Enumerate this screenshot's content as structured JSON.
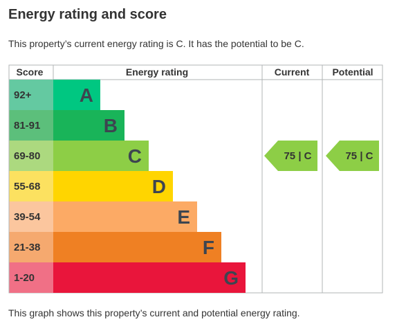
{
  "heading": "Energy rating and score",
  "intro_text": "This property’s current energy rating is C. It has the potential to be C.",
  "footer_text": "This graph shows this property’s current and potential energy rating.",
  "chart_data": {
    "type": "bar",
    "columns": {
      "score": "Score",
      "rating": "Energy rating",
      "current": "Current",
      "potential": "Potential"
    },
    "bands": [
      {
        "score": "92+",
        "letter": "A",
        "color": "#00c781",
        "score_color": "#64c9a1"
      },
      {
        "score": "81-91",
        "letter": "B",
        "color": "#19b459",
        "score_color": "#5cbf7b"
      },
      {
        "score": "69-80",
        "letter": "C",
        "color": "#8dce46",
        "score_color": "#acd97f"
      },
      {
        "score": "55-68",
        "letter": "D",
        "color": "#ffd500",
        "score_color": "#fce160"
      },
      {
        "score": "39-54",
        "letter": "E",
        "color": "#fcaa65",
        "score_color": "#fbc69e"
      },
      {
        "score": "21-38",
        "letter": "F",
        "color": "#ef8023",
        "score_color": "#f5a96f"
      },
      {
        "score": "1-20",
        "letter": "G",
        "color": "#e9153b",
        "score_color": "#f07086"
      }
    ],
    "current": {
      "score": 75,
      "band": "C",
      "label": "75 | C",
      "color": "#8dce46"
    },
    "potential": {
      "score": 75,
      "band": "C",
      "label": "75 | C",
      "color": "#8dce46"
    }
  }
}
